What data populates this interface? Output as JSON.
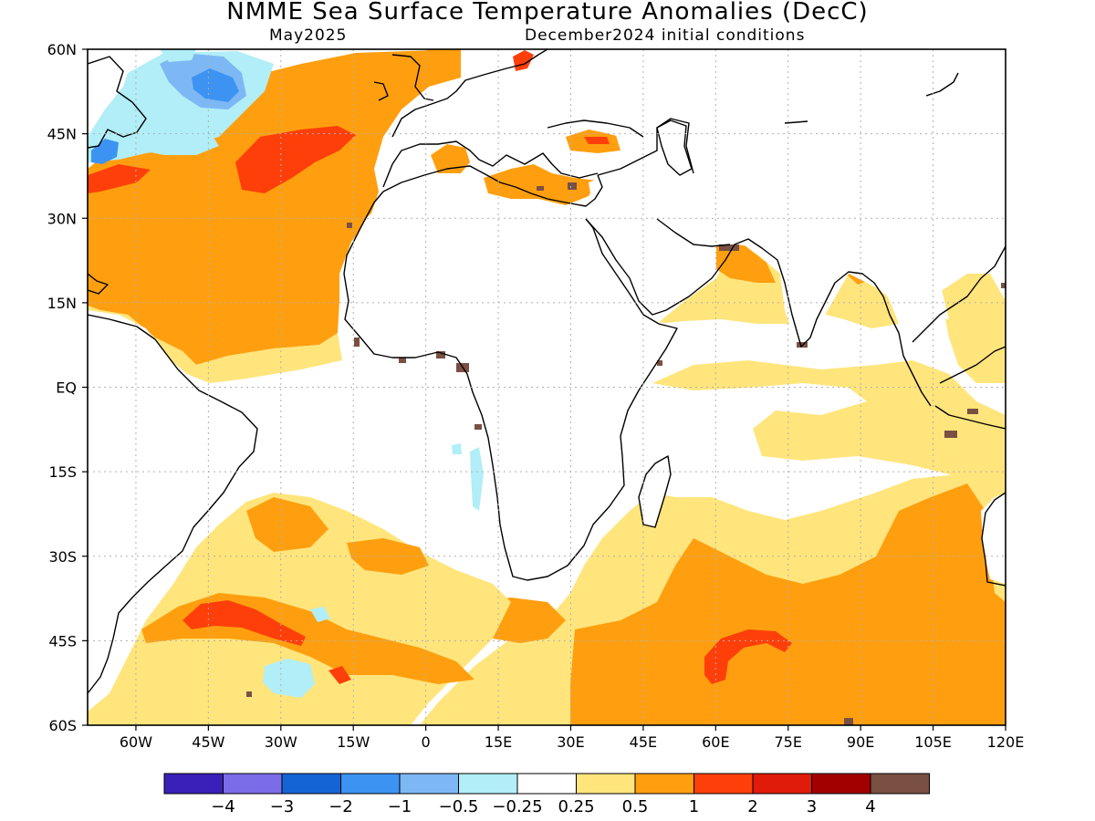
{
  "title": "NMME Sea Surface Temperature Anomalies (DecC)",
  "valid_month": "May2025",
  "init_label": "December2024 initial conditions",
  "map": {
    "lat_ticks": [
      "60N",
      "45N",
      "30N",
      "15N",
      "EQ",
      "15S",
      "30S",
      "45S",
      "60S"
    ],
    "lon_ticks": [
      "60W",
      "45W",
      "30W",
      "15W",
      "0",
      "15E",
      "30E",
      "45E",
      "60E",
      "75E",
      "90E",
      "105E",
      "120E"
    ],
    "lat_range": [
      -60,
      60
    ],
    "lon_range": [
      -70,
      120
    ],
    "grid": "dotted"
  },
  "colorbar": {
    "colors": [
      "#3a1fb8",
      "#7b6ce8",
      "#1564d6",
      "#3d93f2",
      "#7db8f5",
      "#b1eef8",
      "#ffffff",
      "#ffe57c",
      "#ff9f0f",
      "#ff3f0a",
      "#e01b0a",
      "#a20000",
      "#7a5043"
    ],
    "labels": [
      "−4",
      "−3",
      "−2",
      "−1",
      "−0.5",
      "−0.25",
      "0.25",
      "0.5",
      "1",
      "2",
      "3",
      "4"
    ]
  },
  "fill_colors": {
    "light_yellow": "#ffe57c",
    "orange": "#ff9f0f",
    "red": "#ff3f0a",
    "light_blue": "#b1eef8",
    "mid_blue": "#7db8f5",
    "blue": "#3d93f2",
    "brown": "#7a5043",
    "land": "#ffffff"
  }
}
